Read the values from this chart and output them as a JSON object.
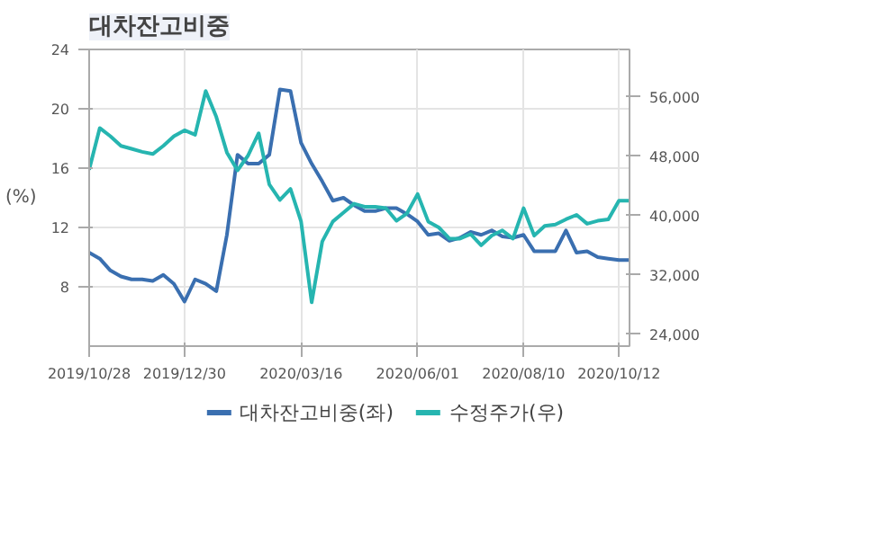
{
  "chart_data": {
    "type": "line",
    "title": "대차잔고비중",
    "ylabel": "(%)",
    "x": [
      "2019-10-28",
      "2019-11-04",
      "2019-11-11",
      "2019-11-18",
      "2019-11-25",
      "2019-12-02",
      "2019-12-09",
      "2019-12-16",
      "2019-12-23",
      "2019-12-30",
      "2020-01-06",
      "2020-01-13",
      "2020-01-20",
      "2020-01-27",
      "2020-02-03",
      "2020-02-10",
      "2020-02-17",
      "2020-02-24",
      "2020-03-02",
      "2020-03-09",
      "2020-03-16",
      "2020-03-23",
      "2020-03-30",
      "2020-04-06",
      "2020-04-13",
      "2020-04-20",
      "2020-04-27",
      "2020-05-04",
      "2020-05-11",
      "2020-05-18",
      "2020-05-25",
      "2020-06-01",
      "2020-06-08",
      "2020-06-15",
      "2020-06-22",
      "2020-06-29",
      "2020-07-06",
      "2020-07-13",
      "2020-07-20",
      "2020-07-27",
      "2020-08-03",
      "2020-08-10",
      "2020-08-17",
      "2020-08-24",
      "2020-08-31",
      "2020-09-07",
      "2020-09-14",
      "2020-09-21",
      "2020-09-28",
      "2020-10-05",
      "2020-10-12",
      "2020-10-19"
    ],
    "series": [
      {
        "name": "대차잔고비중(좌)",
        "color": "#3a6fb0",
        "values": [
          10.3,
          9.9,
          9.1,
          8.7,
          8.5,
          8.5,
          8.4,
          8.8,
          8.2,
          7.0,
          8.5,
          8.2,
          7.7,
          11.5,
          16.9,
          16.3,
          16.3,
          16.9,
          21.3,
          21.2,
          17.7,
          16.3,
          15.1,
          13.8,
          14.0,
          13.5,
          13.1,
          13.1,
          13.3,
          13.3,
          12.9,
          12.4,
          11.5,
          11.6,
          11.1,
          11.3,
          11.7,
          11.5,
          11.8,
          11.4,
          11.3,
          11.5,
          10.4,
          10.4,
          10.4,
          11.8,
          10.3,
          10.4,
          10.0,
          9.9,
          9.8,
          9.8
        ]
      },
      {
        "name": "수정주가(우)",
        "color": "#26b5b0",
        "axis": "y2",
        "values": [
          46200,
          51800,
          50700,
          49400,
          49000,
          48600,
          48300,
          49400,
          50700,
          51500,
          50900,
          56800,
          53300,
          48500,
          46100,
          48100,
          51100,
          44200,
          42100,
          43600,
          39200,
          28300,
          36500,
          39200,
          40400,
          41600,
          41200,
          41200,
          41000,
          39300,
          40300,
          42900,
          39200,
          38400,
          36900,
          36900,
          37500,
          36000,
          37300,
          38000,
          36900,
          41000,
          37300,
          38600,
          38800,
          39500,
          40100,
          38900,
          39300,
          39500,
          42000,
          42000
        ]
      }
    ],
    "xlim": [
      "2019-10-28",
      "2020-10-19"
    ],
    "xticks": [
      {
        "value": "2019-10-28",
        "label": "2019/10/28"
      },
      {
        "value": "2019-12-30",
        "label": "2019/12/30"
      },
      {
        "value": "2020-03-16",
        "label": "2020/03/16"
      },
      {
        "value": "2020-06-01",
        "label": "2020/06/01"
      },
      {
        "value": "2020-08-10",
        "label": "2020/08/10"
      },
      {
        "value": "2020-10-12",
        "label": "2020/10/12"
      }
    ],
    "ylim": [
      4,
      24
    ],
    "yticks": [
      8,
      12,
      16,
      20,
      24
    ],
    "y2lim": [
      22400,
      62400
    ],
    "y2ticks": [
      {
        "value": 24000,
        "label": "24,000"
      },
      {
        "value": 32000,
        "label": "32,000"
      },
      {
        "value": 40000,
        "label": "40,000"
      },
      {
        "value": 48000,
        "label": "48,000"
      },
      {
        "value": 56000,
        "label": "56,000"
      }
    ],
    "grid": true,
    "legend": "bottom",
    "marker": "none",
    "line_style": "solid"
  }
}
